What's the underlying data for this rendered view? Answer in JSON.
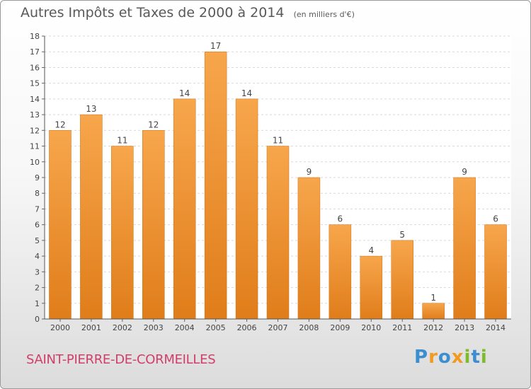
{
  "chart_data": {
    "type": "bar",
    "title": "Autres Impôts et Taxes de 2000 à 2014",
    "subtitle": "(en milliers d'€)",
    "categories": [
      "2000",
      "2001",
      "2002",
      "2003",
      "2004",
      "2005",
      "2006",
      "2007",
      "2008",
      "2009",
      "2010",
      "2011",
      "2012",
      "2013",
      "2014"
    ],
    "values": [
      12,
      13,
      11,
      12,
      14,
      17,
      14,
      11,
      9,
      6,
      4,
      5,
      1,
      9,
      6
    ],
    "ylim": [
      0,
      18
    ],
    "yticks": [
      0,
      1,
      2,
      3,
      4,
      5,
      6,
      7,
      8,
      9,
      10,
      11,
      12,
      13,
      14,
      15,
      16,
      17,
      18
    ],
    "grid": true,
    "bar_color": "#f28c28",
    "xlabel": "",
    "ylabel": ""
  },
  "footer": {
    "commune": "SAINT-PIERRE-DE-CORMEILLES",
    "logo": "Proxiti"
  }
}
